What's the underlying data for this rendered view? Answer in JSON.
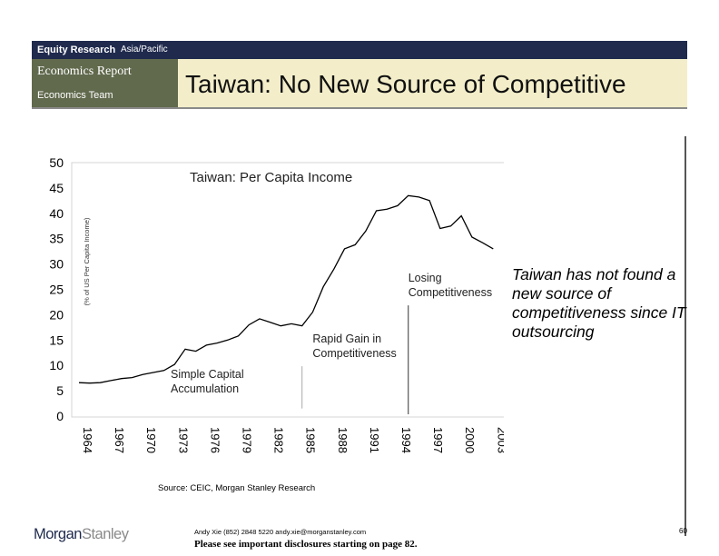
{
  "header": {
    "division": "Equity Research",
    "region": "Asia/Pacific",
    "report": "Economics Report",
    "team": "Economics Team",
    "title": "Taiwan: No New Source of Competitive"
  },
  "sidenote": "Taiwan has not found a new source of competitiveness since IT outsourcing",
  "source": "Source: CEIC, Morgan Stanley Research",
  "footer": {
    "logo_part1": "Morgan",
    "logo_part2": "Stanley",
    "contact": "Andy Xie (852) 2848 5220 andy.xie@morganstanley.com",
    "disclosure": "Please see important disclosures starting on page 82.",
    "page": "60"
  },
  "colors": {
    "header_bar": "#1f2a4d",
    "report_block": "#616a4d",
    "title_bg": "#f3eec9",
    "line": "#000000"
  },
  "chart_data": {
    "type": "line",
    "title": "Taiwan: Per Capita Income",
    "ylabel": "(% of US Per Capita Income)",
    "xlabel": "",
    "ylim": [
      0,
      50
    ],
    "xlim": [
      1964,
      2004
    ],
    "yticks": [
      "0",
      "5",
      "10",
      "15",
      "20",
      "25",
      "30",
      "35",
      "40",
      "45",
      "50"
    ],
    "xticks": [
      "1964",
      "1967",
      "1970",
      "1973",
      "1976",
      "1979",
      "1982",
      "1985",
      "1988",
      "1991",
      "1994",
      "1997",
      "2000",
      "2003"
    ],
    "grid": false,
    "series": [
      {
        "x": [
          1964,
          1965,
          1966,
          1967,
          1968,
          1969,
          1970,
          1971,
          1972,
          1973,
          1974,
          1975,
          1976,
          1977,
          1978,
          1979,
          1980,
          1981,
          1982,
          1983,
          1984,
          1985,
          1986,
          1987,
          1988,
          1989,
          1990,
          1991,
          1992,
          1993,
          1994,
          1995,
          1996,
          1997,
          1998,
          1999,
          2000,
          2001,
          2002,
          2003
        ],
        "values": [
          6.6,
          6.5,
          6.6,
          7.0,
          7.4,
          7.6,
          8.2,
          8.6,
          9.0,
          10.2,
          13.2,
          12.8,
          14.0,
          14.4,
          15.0,
          15.8,
          18.0,
          19.2,
          18.5,
          17.8,
          18.2,
          17.8,
          20.5,
          25.5,
          29.0,
          33.0,
          33.8,
          36.5,
          40.5,
          40.8,
          41.5,
          43.5,
          43.2,
          42.5,
          37.0,
          37.5,
          39.5,
          35.3,
          34.2,
          33.0
        ]
      }
    ],
    "annotations": [
      {
        "text": "Simple Capital",
        "text2": "Accumulation",
        "x": 1974,
        "y": 7.5,
        "line_x": null
      },
      {
        "text": "Rapid Gain in",
        "text2": "Competitiveness",
        "x": 1986,
        "y": 14.5,
        "line_x": 1985
      },
      {
        "text": "Losing",
        "text2": "Competitiveness",
        "x": 1995,
        "y": 26.5,
        "line_x": 1995
      }
    ]
  }
}
